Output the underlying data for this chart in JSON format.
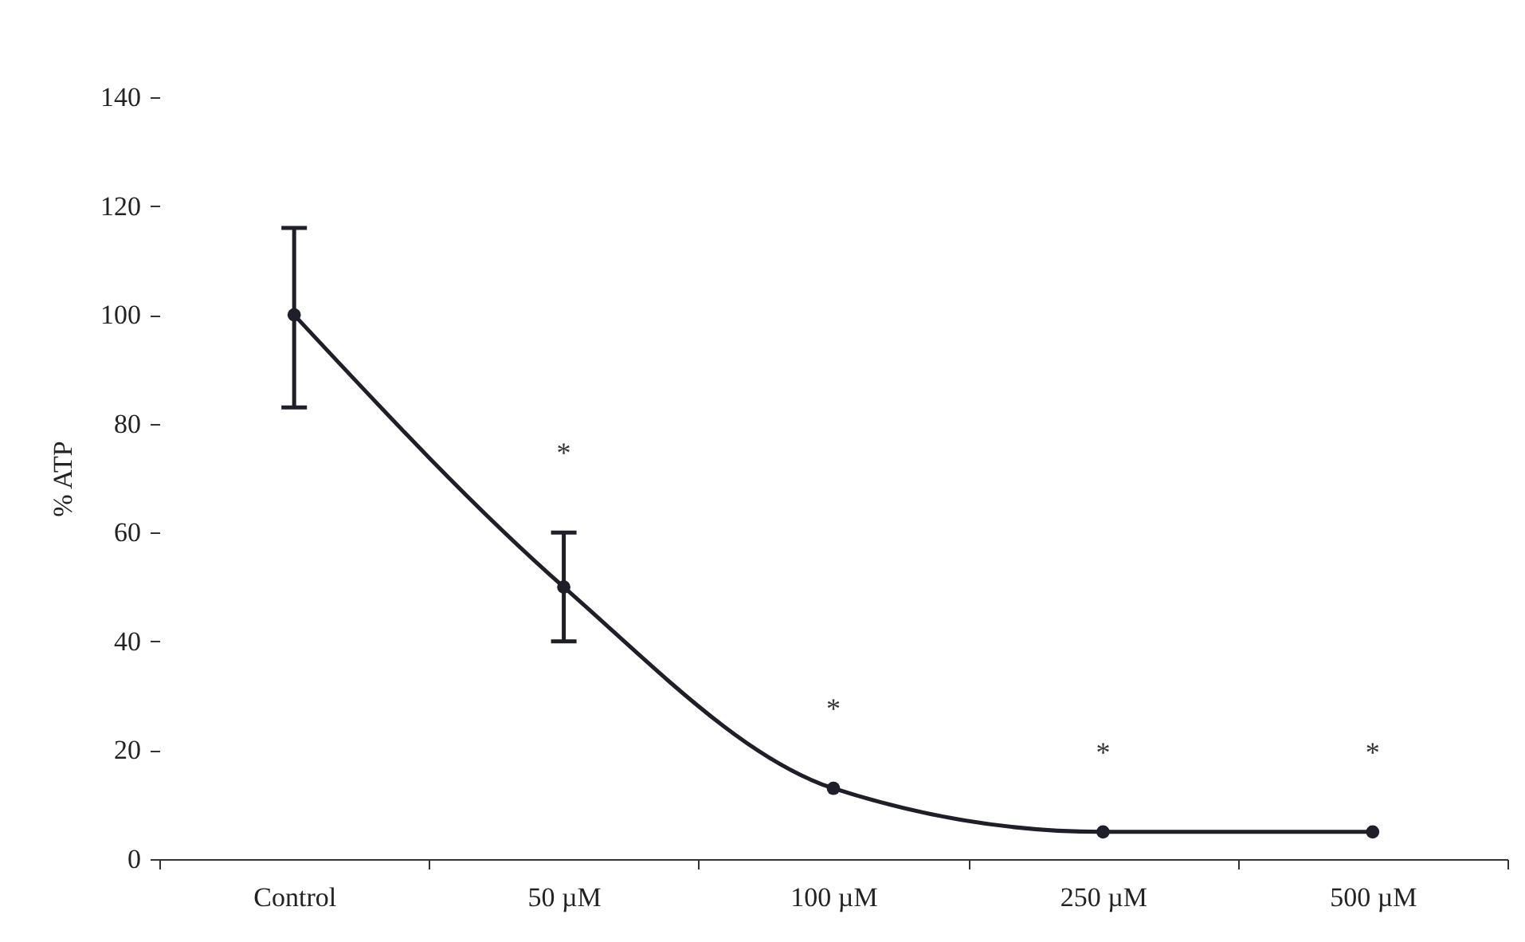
{
  "chart_data": {
    "type": "line",
    "ylabel": "% ATP",
    "categories": [
      "Control",
      "50 µM",
      "100 µM",
      "250 µM",
      "500 µM"
    ],
    "series": [
      {
        "color": "#1f1f2a",
        "values": [
          100,
          50,
          13,
          5,
          5
        ],
        "errors": [
          [
            83,
            116
          ],
          [
            40,
            60
          ],
          null,
          null,
          null
        ]
      }
    ],
    "ylim": [
      0,
      140
    ],
    "yticks": [
      0,
      20,
      40,
      60,
      80,
      100,
      120,
      140
    ],
    "grid": false,
    "marker": "circle",
    "line_style": "solid",
    "annotations": [
      "*",
      "*",
      "*",
      "*"
    ]
  }
}
